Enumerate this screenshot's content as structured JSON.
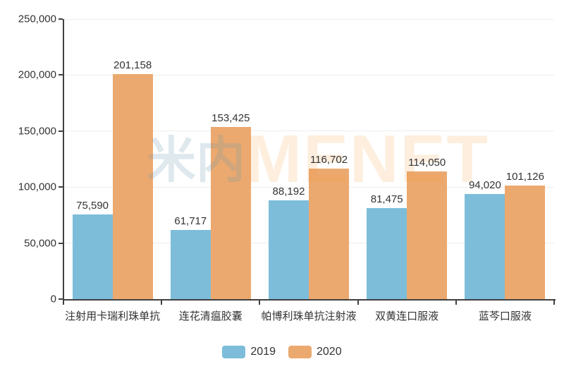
{
  "chart_data": {
    "type": "bar",
    "title": "",
    "xlabel": "",
    "ylabel": "",
    "categories": [
      "注射用卡瑞利珠单抗",
      "连花清瘟胶囊",
      "帕博利珠单抗注射液",
      "双黄连口服液",
      "蓝芩口服液"
    ],
    "series": [
      {
        "name": "2019",
        "color": "#7DBDDA",
        "values": [
          75590,
          61717,
          88192,
          81475,
          94020
        ]
      },
      {
        "name": "2020",
        "color": "#ECA96F",
        "values": [
          201158,
          153425,
          116702,
          114050,
          101126
        ]
      }
    ],
    "ylim": [
      0,
      250000
    ],
    "yticks": [
      0,
      50000,
      100000,
      150000,
      200000,
      250000
    ],
    "grid": true,
    "legend_position": "bottom"
  },
  "watermark": {
    "logo_text": "米内",
    "brand_text": "MENET"
  },
  "colors": {
    "axis": "#404040",
    "gridline": "#ededed",
    "text": "#333333",
    "background": "#ffffff"
  }
}
